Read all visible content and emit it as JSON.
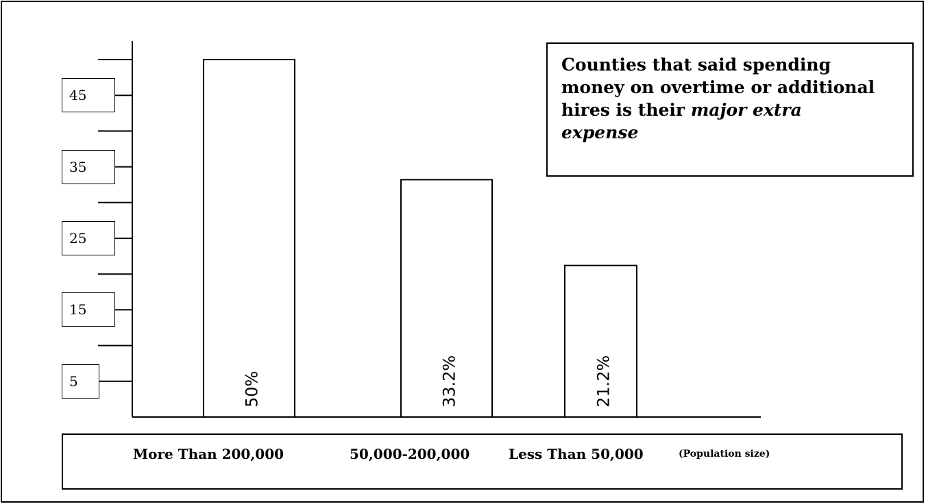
{
  "chart_data": {
    "type": "bar",
    "title_lines": [
      "Counties that said spending",
      "money on overtime or additional",
      "hires is their "
    ],
    "title_emphasis": [
      "major extra",
      "expense"
    ],
    "categories": [
      "More Than 200,000",
      "50,000-200,000",
      "Less Than 50,000"
    ],
    "category_note": "(Population size)",
    "values": [
      50,
      33.2,
      21.2
    ],
    "data_labels": [
      "50%",
      "33.2%",
      "21.2%"
    ],
    "yticks_labeled": [
      "5",
      "15",
      "25",
      "35",
      "45"
    ],
    "ylim": [
      0,
      50
    ],
    "grid": false,
    "legend": "none"
  }
}
